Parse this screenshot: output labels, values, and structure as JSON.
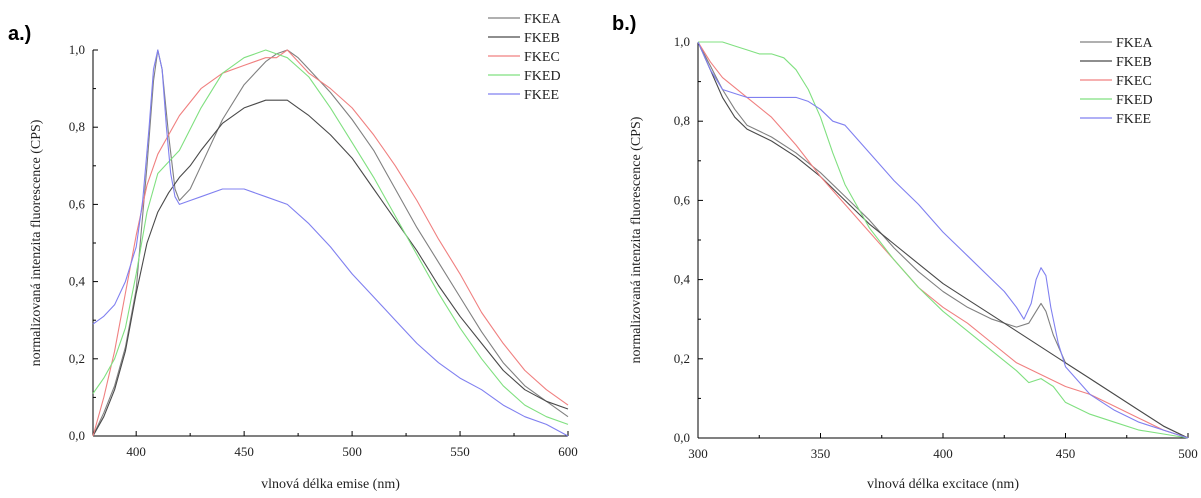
{
  "chart_data": [
    {
      "type": "line",
      "panel_label": "a.)",
      "xlabel": "vlnová délka emise (nm)",
      "ylabel": "normalizovaná intenzita fluorescence (CPS)",
      "xlim": [
        380,
        600
      ],
      "ylim": [
        0,
        1.0
      ],
      "xticks": [
        400,
        450,
        500,
        550,
        600
      ],
      "yticks": [
        0.0,
        0.2,
        0.4,
        0.6,
        0.8,
        1.0
      ],
      "ytick_labels": [
        "0,0",
        "0,2",
        "0,4",
        "0,6",
        "0,8",
        "1,0"
      ],
      "xtick_labels": [
        "400",
        "450",
        "500",
        "550",
        "600"
      ],
      "grid": false,
      "legend_position": "top-right",
      "series": [
        {
          "name": "FKEA",
          "color": "#808080",
          "x": [
            380,
            385,
            390,
            395,
            400,
            405,
            408,
            410,
            412,
            415,
            418,
            420,
            425,
            430,
            440,
            450,
            460,
            465,
            470,
            475,
            480,
            490,
            500,
            510,
            520,
            530,
            540,
            550,
            560,
            570,
            580,
            590,
            600
          ],
          "y": [
            0.0,
            0.06,
            0.13,
            0.23,
            0.38,
            0.7,
            0.92,
            1.0,
            0.95,
            0.78,
            0.64,
            0.61,
            0.64,
            0.7,
            0.82,
            0.91,
            0.97,
            0.99,
            1.0,
            0.98,
            0.95,
            0.89,
            0.82,
            0.74,
            0.64,
            0.54,
            0.45,
            0.36,
            0.27,
            0.19,
            0.13,
            0.09,
            0.05
          ]
        },
        {
          "name": "FKEB",
          "color": "#4a4a4a",
          "x": [
            380,
            385,
            390,
            395,
            400,
            405,
            410,
            415,
            420,
            425,
            430,
            440,
            450,
            460,
            465,
            470,
            475,
            480,
            490,
            500,
            510,
            520,
            530,
            540,
            550,
            560,
            570,
            580,
            590,
            600
          ],
          "y": [
            0.0,
            0.05,
            0.12,
            0.22,
            0.37,
            0.5,
            0.58,
            0.63,
            0.67,
            0.7,
            0.74,
            0.81,
            0.85,
            0.87,
            0.87,
            0.87,
            0.85,
            0.83,
            0.78,
            0.72,
            0.64,
            0.56,
            0.48,
            0.39,
            0.31,
            0.24,
            0.17,
            0.12,
            0.09,
            0.07
          ]
        },
        {
          "name": "FKEC",
          "color": "#f08080",
          "x": [
            380,
            385,
            390,
            395,
            400,
            405,
            410,
            420,
            430,
            440,
            450,
            460,
            465,
            470,
            475,
            480,
            490,
            500,
            510,
            520,
            530,
            540,
            550,
            560,
            570,
            580,
            590,
            600
          ],
          "y": [
            0.0,
            0.1,
            0.22,
            0.37,
            0.52,
            0.65,
            0.73,
            0.83,
            0.9,
            0.94,
            0.96,
            0.98,
            0.98,
            1.0,
            0.97,
            0.94,
            0.9,
            0.85,
            0.78,
            0.7,
            0.61,
            0.51,
            0.42,
            0.32,
            0.24,
            0.17,
            0.12,
            0.08
          ]
        },
        {
          "name": "FKED",
          "color": "#80e080",
          "x": [
            380,
            385,
            390,
            395,
            400,
            405,
            410,
            415,
            420,
            430,
            440,
            450,
            455,
            460,
            465,
            470,
            480,
            490,
            500,
            510,
            520,
            530,
            540,
            550,
            560,
            570,
            580,
            590,
            600
          ],
          "y": [
            0.11,
            0.15,
            0.2,
            0.28,
            0.42,
            0.58,
            0.68,
            0.71,
            0.74,
            0.85,
            0.94,
            0.98,
            0.99,
            1.0,
            0.99,
            0.98,
            0.93,
            0.85,
            0.76,
            0.67,
            0.57,
            0.47,
            0.37,
            0.28,
            0.2,
            0.13,
            0.08,
            0.05,
            0.03
          ]
        },
        {
          "name": "FKEE",
          "color": "#8080f0",
          "x": [
            380,
            385,
            390,
            395,
            400,
            403,
            406,
            408,
            410,
            412,
            414,
            416,
            418,
            420,
            425,
            430,
            440,
            450,
            460,
            470,
            480,
            490,
            500,
            510,
            520,
            530,
            540,
            550,
            560,
            570,
            580,
            590,
            600
          ],
          "y": [
            0.29,
            0.31,
            0.34,
            0.4,
            0.49,
            0.61,
            0.8,
            0.95,
            1.0,
            0.95,
            0.8,
            0.68,
            0.62,
            0.6,
            0.61,
            0.62,
            0.64,
            0.64,
            0.62,
            0.6,
            0.55,
            0.49,
            0.42,
            0.36,
            0.3,
            0.24,
            0.19,
            0.15,
            0.12,
            0.08,
            0.05,
            0.03,
            0.0
          ]
        }
      ]
    },
    {
      "type": "line",
      "panel_label": "b.)",
      "xlabel": "vlnová délka excitace (nm)",
      "ylabel": "normalizovaná intenzita fluorescence (CPS)",
      "xlim": [
        300,
        500
      ],
      "ylim": [
        0,
        1.0
      ],
      "xticks": [
        300,
        350,
        400,
        450,
        500
      ],
      "yticks": [
        0.0,
        0.2,
        0.4,
        0.6,
        0.8,
        1.0
      ],
      "ytick_labels": [
        "0,0",
        "0,2",
        "0,4",
        "0,6",
        "0,8",
        "1,0"
      ],
      "xtick_labels": [
        "300",
        "350",
        "400",
        "450",
        "500"
      ],
      "grid": false,
      "legend_position": "top-right",
      "series": [
        {
          "name": "FKEA",
          "color": "#808080",
          "x": [
            300,
            305,
            310,
            315,
            320,
            330,
            340,
            350,
            360,
            370,
            380,
            390,
            400,
            410,
            420,
            430,
            435,
            438,
            440,
            442,
            445,
            450,
            460,
            470,
            480,
            490,
            500
          ],
          "y": [
            1.0,
            0.94,
            0.88,
            0.83,
            0.79,
            0.76,
            0.72,
            0.67,
            0.61,
            0.55,
            0.48,
            0.42,
            0.37,
            0.33,
            0.3,
            0.28,
            0.29,
            0.32,
            0.34,
            0.32,
            0.26,
            0.19,
            0.15,
            0.11,
            0.07,
            0.03,
            0.0
          ]
        },
        {
          "name": "FKEB",
          "color": "#4a4a4a",
          "x": [
            300,
            305,
            310,
            315,
            320,
            330,
            340,
            350,
            360,
            370,
            380,
            390,
            400,
            410,
            420,
            430,
            440,
            450,
            460,
            470,
            480,
            490,
            500
          ],
          "y": [
            1.0,
            0.93,
            0.86,
            0.81,
            0.78,
            0.75,
            0.71,
            0.66,
            0.6,
            0.54,
            0.49,
            0.44,
            0.39,
            0.35,
            0.31,
            0.27,
            0.23,
            0.19,
            0.15,
            0.11,
            0.07,
            0.03,
            0.0
          ]
        },
        {
          "name": "FKEC",
          "color": "#f08080",
          "x": [
            300,
            305,
            310,
            320,
            330,
            340,
            350,
            360,
            370,
            380,
            390,
            400,
            410,
            420,
            430,
            440,
            450,
            460,
            470,
            480,
            490,
            500
          ],
          "y": [
            1.0,
            0.95,
            0.91,
            0.86,
            0.81,
            0.74,
            0.66,
            0.59,
            0.52,
            0.45,
            0.38,
            0.33,
            0.29,
            0.24,
            0.19,
            0.16,
            0.13,
            0.11,
            0.08,
            0.05,
            0.02,
            0.0
          ]
        },
        {
          "name": "FKED",
          "color": "#80e080",
          "x": [
            300,
            305,
            310,
            315,
            320,
            325,
            330,
            335,
            340,
            345,
            350,
            355,
            360,
            370,
            380,
            390,
            400,
            410,
            420,
            430,
            435,
            440,
            445,
            450,
            460,
            470,
            480,
            490,
            500
          ],
          "y": [
            1.0,
            1.0,
            1.0,
            0.99,
            0.98,
            0.97,
            0.97,
            0.96,
            0.93,
            0.88,
            0.81,
            0.72,
            0.64,
            0.53,
            0.45,
            0.38,
            0.32,
            0.27,
            0.22,
            0.17,
            0.14,
            0.15,
            0.13,
            0.09,
            0.06,
            0.04,
            0.02,
            0.01,
            0.0
          ]
        },
        {
          "name": "FKEE",
          "color": "#8080f0",
          "x": [
            300,
            305,
            310,
            315,
            320,
            325,
            330,
            335,
            340,
            345,
            350,
            355,
            360,
            370,
            380,
            390,
            400,
            410,
            420,
            425,
            430,
            433,
            436,
            438,
            440,
            442,
            444,
            447,
            450,
            460,
            470,
            480,
            490,
            500
          ],
          "y": [
            1.0,
            0.93,
            0.88,
            0.87,
            0.86,
            0.86,
            0.86,
            0.86,
            0.86,
            0.85,
            0.83,
            0.8,
            0.79,
            0.72,
            0.65,
            0.59,
            0.52,
            0.46,
            0.4,
            0.37,
            0.33,
            0.3,
            0.34,
            0.4,
            0.43,
            0.41,
            0.33,
            0.24,
            0.18,
            0.11,
            0.07,
            0.04,
            0.02,
            0.0
          ]
        }
      ]
    }
  ]
}
